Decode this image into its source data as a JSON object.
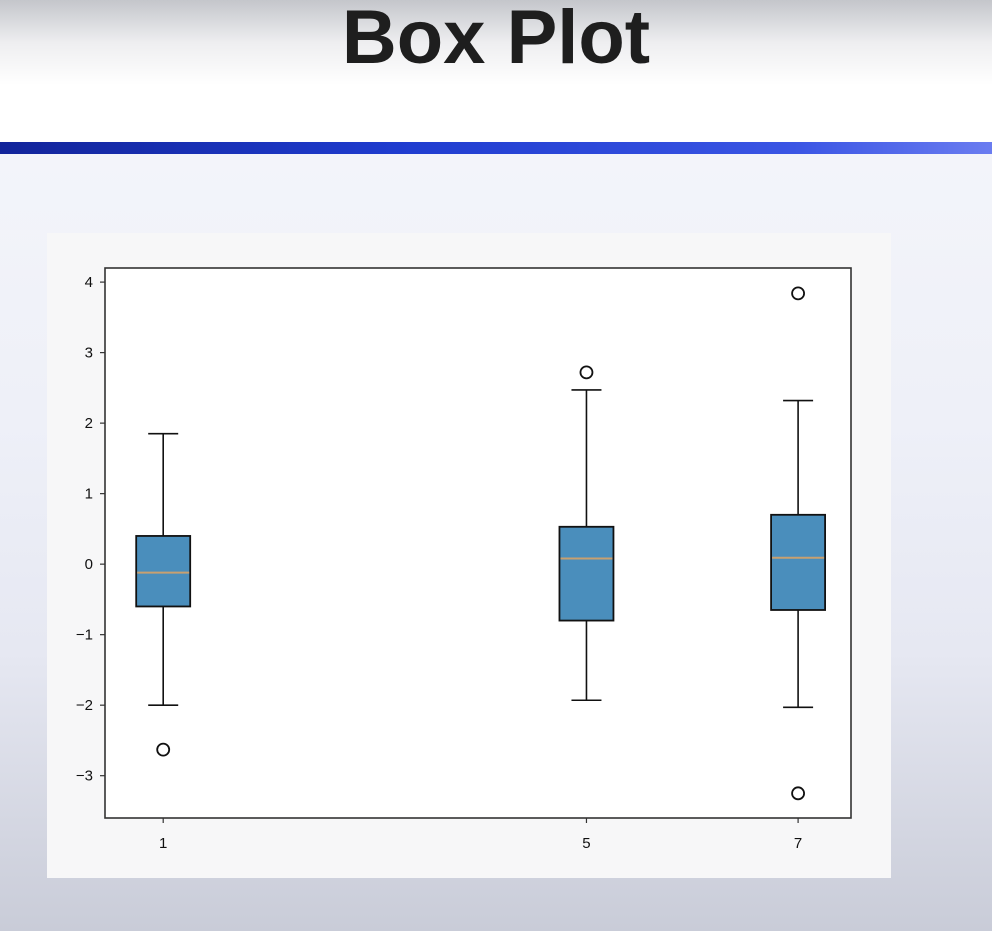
{
  "slide": {
    "title": "Box Plot"
  },
  "chart_data": {
    "type": "box",
    "categories": [
      "1",
      "5",
      "7"
    ],
    "boxes": [
      {
        "category": "1",
        "whisker_low": -2.0,
        "q1": -0.6,
        "median": -0.12,
        "q3": 0.4,
        "whisker_high": 1.85,
        "outliers": [
          -2.63
        ]
      },
      {
        "category": "5",
        "whisker_low": -1.93,
        "q1": -0.8,
        "median": 0.08,
        "q3": 0.53,
        "whisker_high": 2.47,
        "outliers": [
          2.72
        ]
      },
      {
        "category": "7",
        "whisker_low": -2.03,
        "q1": -0.65,
        "median": 0.09,
        "q3": 0.7,
        "whisker_high": 2.32,
        "outliers": [
          3.84,
          -3.25
        ]
      }
    ],
    "x_ticks": [
      "1",
      "5",
      "7"
    ],
    "x_values": [
      1,
      5,
      7
    ],
    "xlim": [
      0.45,
      7.5
    ],
    "y_ticks": [
      "4",
      "3",
      "2",
      "1",
      "0",
      "−1",
      "−2",
      "−3"
    ],
    "y_tick_values": [
      4,
      3,
      2,
      1,
      0,
      -1,
      -2,
      -3
    ],
    "ylim": [
      -3.6,
      4.2
    ],
    "title": "",
    "xlabel": "",
    "ylabel": "",
    "grid": false,
    "box_fill": "#4a8ebc",
    "median_color": "#c8a070"
  }
}
